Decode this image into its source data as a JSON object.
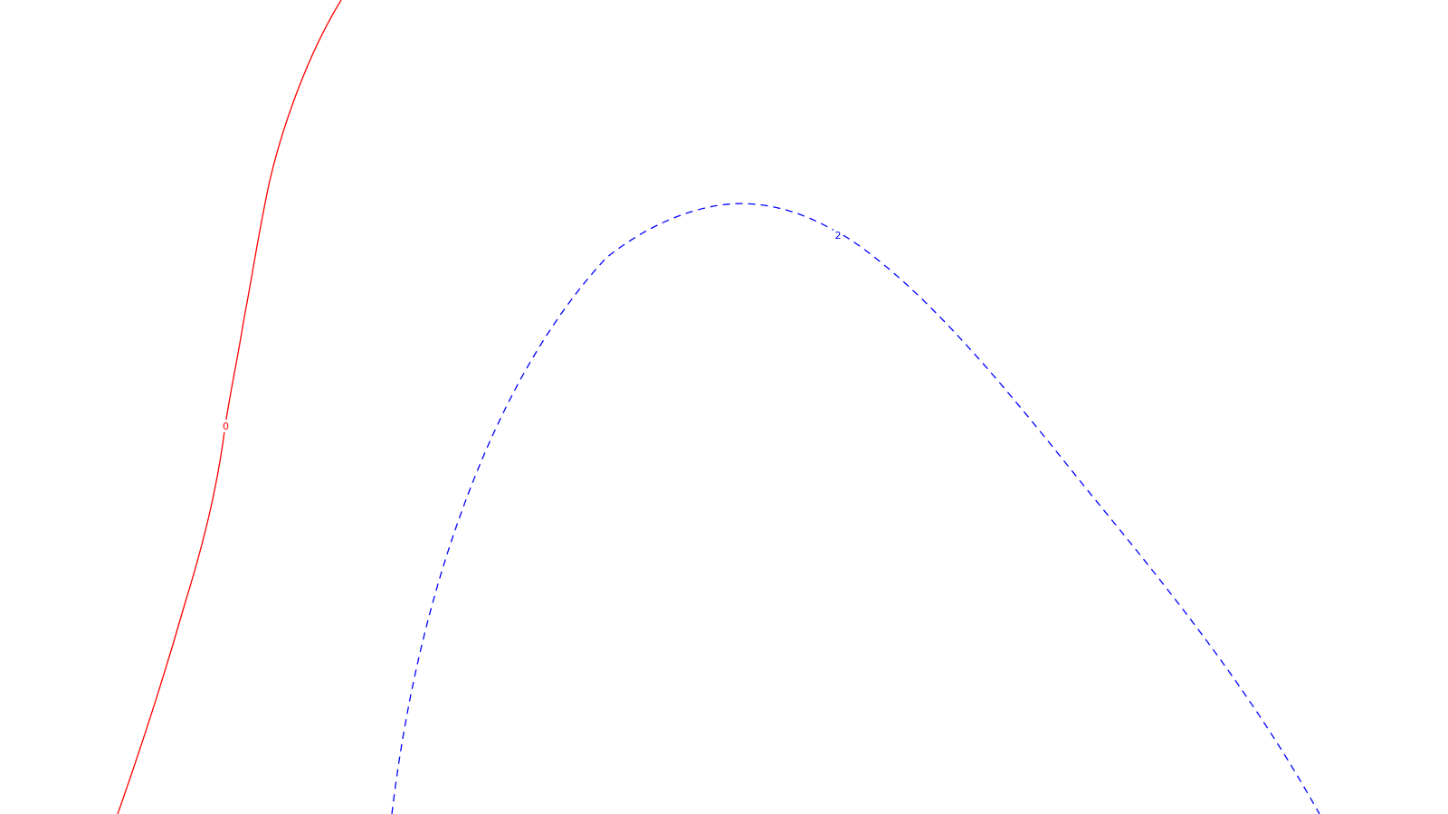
{
  "contours": [
    {
      "label": "0",
      "color": "#ff0000",
      "line_style": "solid"
    },
    {
      "label": "2",
      "color": "#0000ff",
      "line_style": "dashed"
    }
  ]
}
